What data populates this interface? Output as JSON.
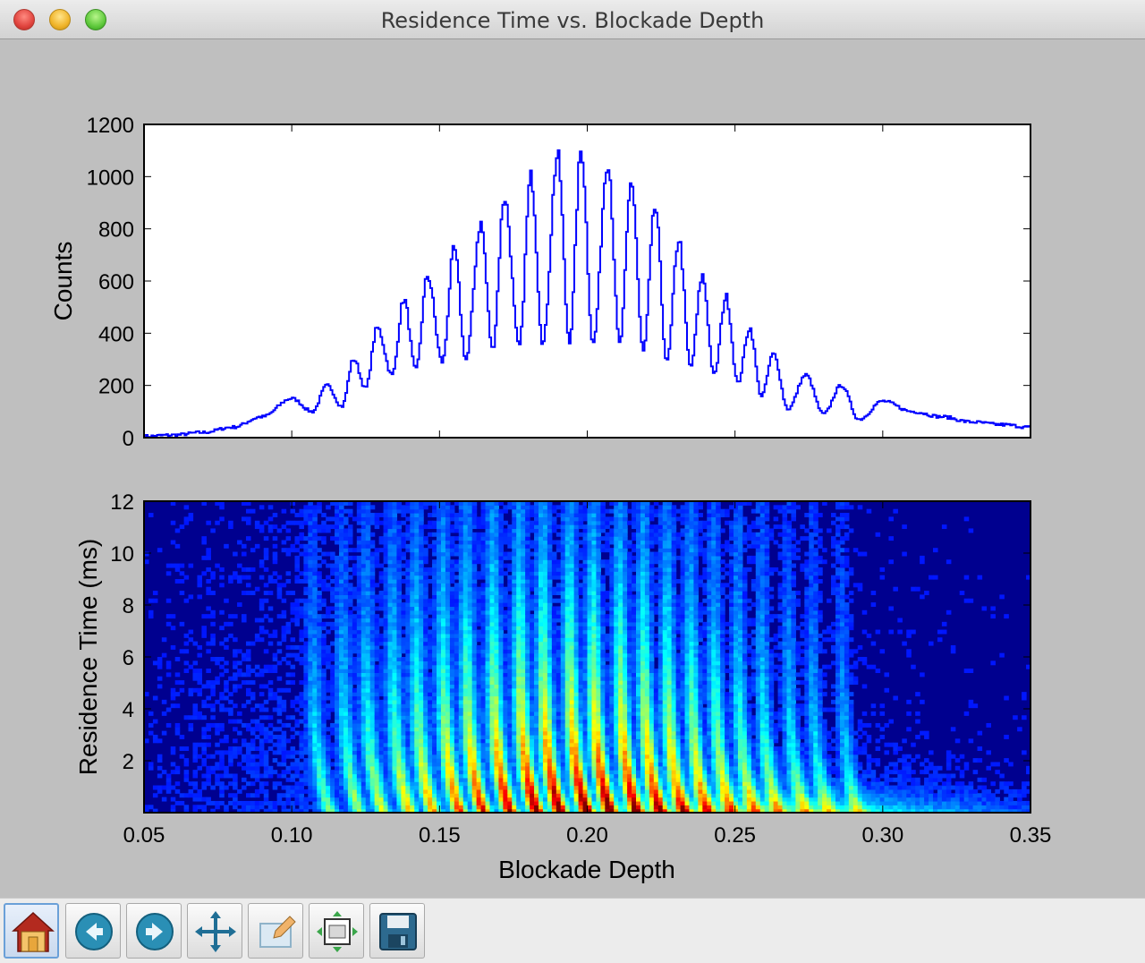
{
  "window": {
    "title": "Residence Time vs. Blockade Depth"
  },
  "toolbar": {
    "buttons": [
      {
        "icon": "home-icon"
      },
      {
        "icon": "back-arrow-icon"
      },
      {
        "icon": "forward-arrow-icon"
      },
      {
        "icon": "pan-icon"
      },
      {
        "icon": "zoom-rect-icon"
      },
      {
        "icon": "subplots-config-icon"
      },
      {
        "icon": "save-icon"
      }
    ]
  },
  "chart_data": [
    {
      "type": "line",
      "xlabel": "",
      "ylabel": "Counts",
      "xlim": [
        0.05,
        0.35
      ],
      "ylim": [
        0,
        1200
      ],
      "yticks": [
        "0",
        "200",
        "400",
        "600",
        "800",
        "1000",
        "1200"
      ],
      "line_color": "#0000ff",
      "series": [
        {
          "x": [
            0.05,
            0.06,
            0.07,
            0.08,
            0.09,
            0.1,
            0.107,
            0.112,
            0.117,
            0.121,
            0.125,
            0.129,
            0.134,
            0.138,
            0.142,
            0.146,
            0.151,
            0.155,
            0.159,
            0.164,
            0.168,
            0.172,
            0.177,
            0.181,
            0.185,
            0.19,
            0.194,
            0.198,
            0.202,
            0.207,
            0.211,
            0.215,
            0.219,
            0.223,
            0.227,
            0.231,
            0.235,
            0.239,
            0.243,
            0.247,
            0.251,
            0.255,
            0.259,
            0.263,
            0.268,
            0.274,
            0.28,
            0.286,
            0.292,
            0.3,
            0.31,
            0.32,
            0.33,
            0.34,
            0.35
          ],
          "y": [
            5,
            10,
            20,
            40,
            80,
            150,
            100,
            200,
            120,
            300,
            190,
            420,
            240,
            530,
            260,
            620,
            290,
            720,
            300,
            820,
            340,
            920,
            350,
            1000,
            360,
            1080,
            370,
            1100,
            360,
            1060,
            360,
            980,
            330,
            880,
            290,
            760,
            270,
            620,
            240,
            540,
            210,
            420,
            160,
            320,
            110,
            240,
            90,
            200,
            70,
            140,
            100,
            80,
            60,
            50,
            40
          ]
        }
      ]
    },
    {
      "type": "heatmap",
      "xlabel": "Blockade Depth",
      "ylabel": "Residence Time (ms)",
      "xlim": [
        0.05,
        0.35
      ],
      "ylim": [
        0,
        12
      ],
      "xticks": [
        "0.05",
        "0.10",
        "0.15",
        "0.20",
        "0.25",
        "0.30",
        "0.35"
      ],
      "yticks": [
        "2",
        "4",
        "6",
        "8",
        "10",
        "12"
      ],
      "colormap": "jet",
      "bands_x": [
        0.107,
        0.117,
        0.125,
        0.134,
        0.142,
        0.151,
        0.159,
        0.168,
        0.177,
        0.185,
        0.194,
        0.202,
        0.211,
        0.219,
        0.227,
        0.235,
        0.243,
        0.251,
        0.259,
        0.268,
        0.276,
        0.286
      ]
    }
  ]
}
